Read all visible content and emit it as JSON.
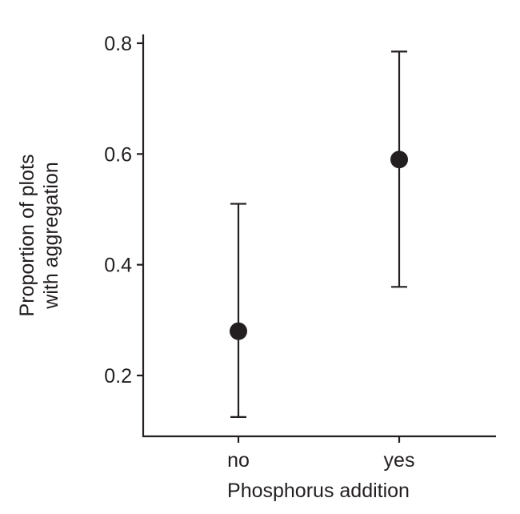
{
  "chart_data": {
    "type": "scatter",
    "categories": [
      "no",
      "yes"
    ],
    "values": [
      0.28,
      0.59
    ],
    "error_low": [
      0.125,
      0.36
    ],
    "error_high": [
      0.51,
      0.785
    ],
    "xlabel": "Phosphorus addition",
    "ylabel_lines": [
      "Proportion of plots",
      "with aggregation"
    ],
    "ylim": [
      0.1,
      0.82
    ],
    "yticks": [
      0.2,
      0.4,
      0.6,
      0.8
    ],
    "ytick_labels": [
      "0.2",
      "0.4",
      "0.6",
      "0.8"
    ],
    "grid": false,
    "colors": {
      "ink": "#231f20"
    }
  }
}
